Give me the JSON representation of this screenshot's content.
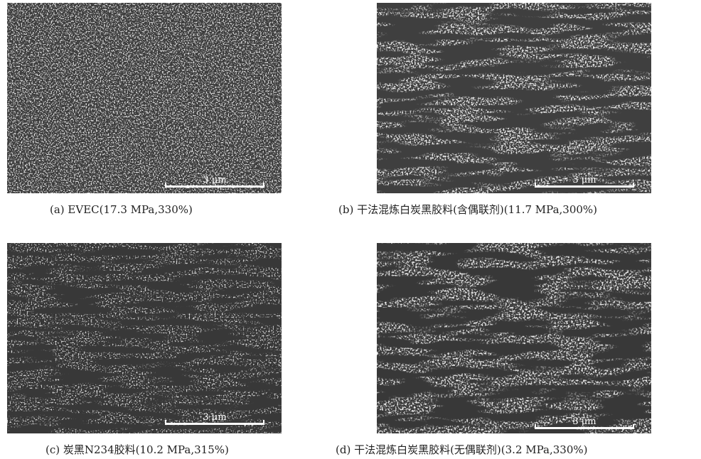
{
  "figure": {
    "panels": [
      {
        "id": "a",
        "caption": "(a) EVEC(17.3 MPa,330%)",
        "scale_label": "3 μm"
      },
      {
        "id": "b",
        "caption": "(b) 干法混炼白炭黑胶料(含偶联剂)(11.7 MPa,300%)",
        "scale_label": "3 μm"
      },
      {
        "id": "c",
        "caption": "(c) 炭黑N234胶料(10.2 MPa,315%)",
        "scale_label": "3 μm"
      },
      {
        "id": "d",
        "caption": "(d) 干法混炼白炭黑胶料(无偶联剂)(3.2 MPa,330%)",
        "scale_label": "3 μm"
      }
    ]
  },
  "colors": {
    "matrix": "#3b3b3b",
    "particle": "#cfcfcf",
    "void": "#111111"
  }
}
